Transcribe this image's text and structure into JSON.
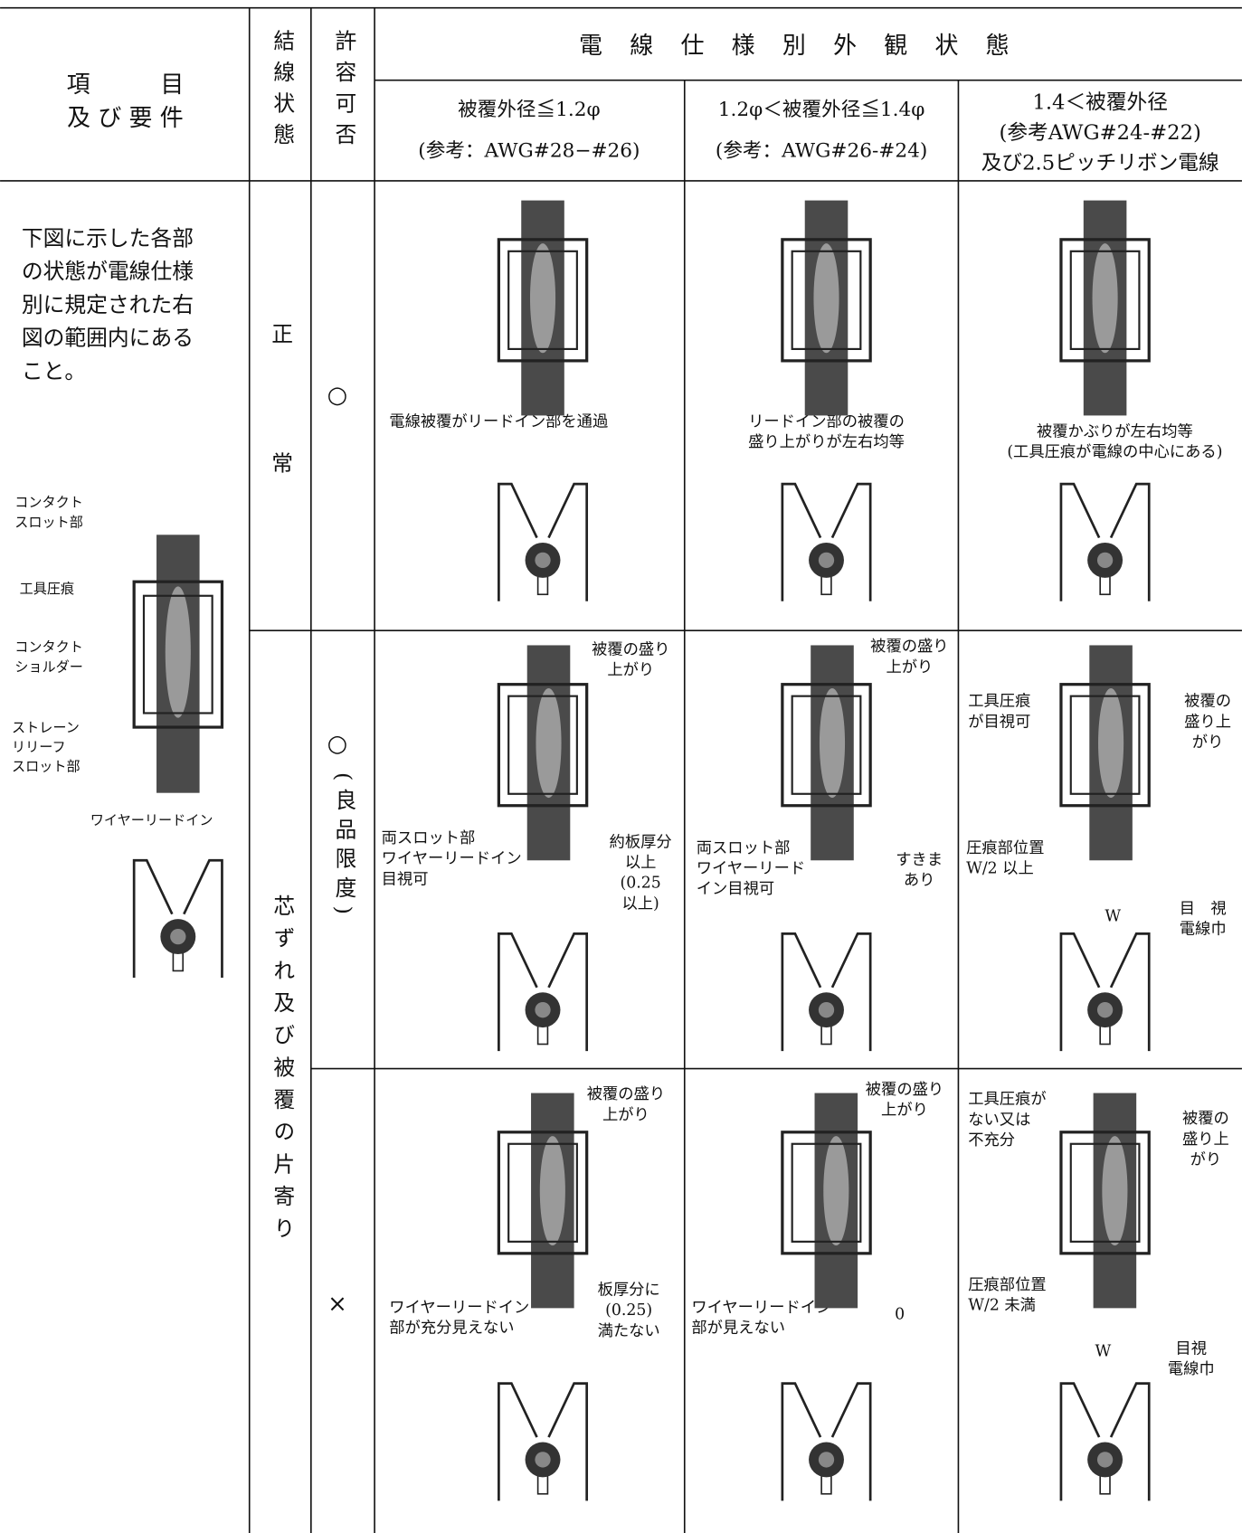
{
  "header": {
    "item": [
      "項　　　目",
      "及 び 要 件"
    ],
    "wiring_state": "結線状態",
    "acceptability": "許容可否",
    "appearance_title": "電線仕様別外観状態",
    "columns": [
      {
        "lines": [
          "被覆外径≦1.2φ",
          "(参考：AWG#28−#26)"
        ]
      },
      {
        "lines": [
          "1.2φ＜被覆外径≦1.4φ",
          "(参考：AWG#26-#24)"
        ]
      },
      {
        "lines": [
          "1.4＜被覆外径",
          "(参考AWG#24-#22)",
          "及び2.5ピッチリボン電線"
        ]
      }
    ]
  },
  "requirement": {
    "lines": [
      "下図に示した各部",
      "の状態が電線仕様",
      "別に規定された右",
      "図の範囲内にある",
      "こと。"
    ],
    "labels": [
      {
        "lines": [
          "コンタクト",
          "スロット部"
        ]
      },
      {
        "lines": [
          "工具圧痕"
        ]
      },
      {
        "lines": [
          "コンタクト",
          "ショルダー"
        ]
      },
      {
        "lines": [
          "ストレーン",
          "リリーフ",
          "スロット部"
        ]
      },
      {
        "lines": [
          "ワイヤーリードイン"
        ]
      }
    ]
  },
  "states": [
    "正常",
    "芯ずれ及び被覆の片寄り"
  ],
  "rows": [
    {
      "acceptability": "○",
      "cells": [
        [
          {
            "lines": [
              "電線被覆がリードイン部を通過"
            ]
          }
        ],
        [
          {
            "lines": [
              "リードイン部の被覆の",
              "盛り上がりが左右均等"
            ]
          }
        ],
        [
          {
            "lines": [
              "被覆かぶりが左右均等",
              "(工具圧痕が電線の中心にある)"
            ]
          }
        ]
      ]
    },
    {
      "acceptability": "○",
      "note": "(良品限度)",
      "cells": [
        [
          {
            "lines": [
              "被覆の盛り",
              "上がり"
            ]
          },
          {
            "lines": [
              "両スロット部",
              "ワイヤーリードイン",
              "目視可"
            ]
          },
          {
            "lines": [
              "約板厚分",
              "以上",
              "(0.25",
              "以上)"
            ]
          }
        ],
        [
          {
            "lines": [
              "被覆の盛り",
              "上がり"
            ]
          },
          {
            "lines": [
              "両スロット部",
              "ワイヤーリード",
              "イン目視可"
            ]
          },
          {
            "lines": [
              "すきま",
              "あり"
            ]
          }
        ],
        [
          {
            "lines": [
              "工具圧痕",
              "が目視可"
            ]
          },
          {
            "lines": [
              "被覆の",
              "盛り上",
              "がり"
            ]
          },
          {
            "lines": [
              "圧痕部位置",
              "W/2 以上"
            ]
          },
          {
            "lines": [
              "W"
            ]
          },
          {
            "lines": [
              "目　視",
              "電線巾"
            ]
          }
        ]
      ]
    },
    {
      "acceptability": "×",
      "cells": [
        [
          {
            "lines": [
              "被覆の盛り",
              "上がり"
            ]
          },
          {
            "lines": [
              "ワイヤーリードイン",
              "部が充分見えない"
            ]
          },
          {
            "lines": [
              "板厚分に",
              "(0.25)",
              "満たない"
            ]
          }
        ],
        [
          {
            "lines": [
              "被覆の盛り",
              "上がり"
            ]
          },
          {
            "lines": [
              "ワイヤーリードイン",
              "部が見えない"
            ]
          },
          {
            "lines": [
              "0"
            ]
          }
        ],
        [
          {
            "lines": [
              "工具圧痕が",
              "ない又は",
              "不充分"
            ]
          },
          {
            "lines": [
              "被覆の",
              "盛り上",
              "がり"
            ]
          },
          {
            "lines": [
              "圧痕部位置",
              "W/2 未満"
            ]
          },
          {
            "lines": [
              "W"
            ]
          },
          {
            "lines": [
              "目視",
              "電線巾"
            ]
          }
        ]
      ]
    }
  ]
}
